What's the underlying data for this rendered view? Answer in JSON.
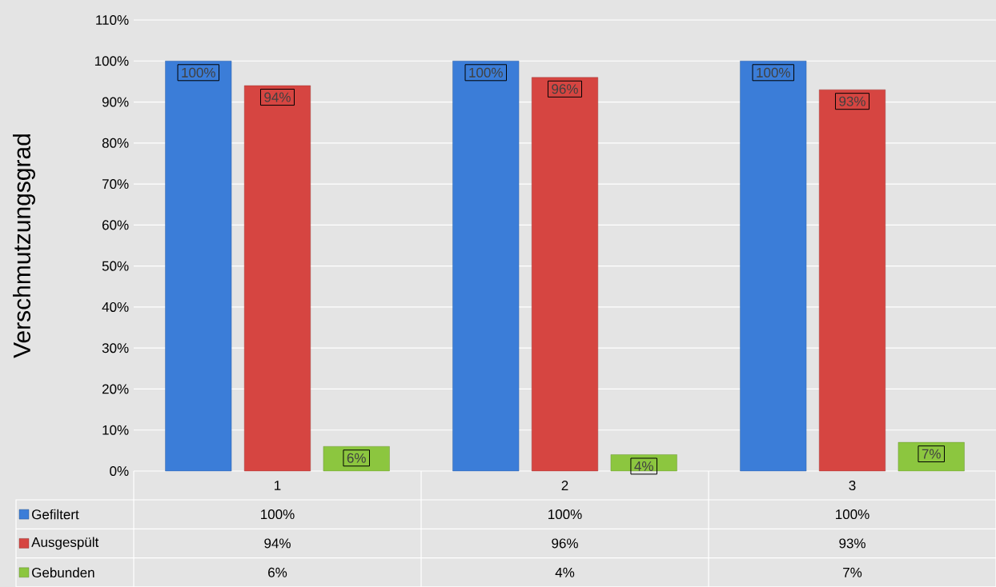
{
  "chart_data": {
    "type": "bar",
    "ylabel": "Verschmutzungsgrad",
    "categories": [
      "1",
      "2",
      "3"
    ],
    "series": [
      {
        "name": "Gefiltert",
        "color": "#3b7dd8",
        "values": [
          100,
          100,
          100
        ],
        "value_labels": [
          "100%",
          "100%",
          "100%"
        ]
      },
      {
        "name": "Ausgespült",
        "color": "#d64541",
        "values": [
          94,
          96,
          93
        ],
        "value_labels": [
          "94%",
          "96%",
          "93%"
        ]
      },
      {
        "name": "Gebunden",
        "color": "#8cc63f",
        "values": [
          6,
          4,
          7
        ],
        "value_labels": [
          "6%",
          "4%",
          "7%"
        ]
      }
    ],
    "ylim": [
      0,
      110
    ],
    "yticks": [
      {
        "value": 0,
        "label": "0%"
      },
      {
        "value": 10,
        "label": "10%"
      },
      {
        "value": 20,
        "label": "20%"
      },
      {
        "value": 30,
        "label": "30%"
      },
      {
        "value": 40,
        "label": "40%"
      },
      {
        "value": 50,
        "label": "50%"
      },
      {
        "value": 60,
        "label": "60%"
      },
      {
        "value": 70,
        "label": "70%"
      },
      {
        "value": 80,
        "label": "80%"
      },
      {
        "value": 90,
        "label": "90%"
      },
      {
        "value": 100,
        "label": "100%"
      },
      {
        "value": 110,
        "label": "110%"
      }
    ],
    "grid": "y",
    "legend": "bottom"
  }
}
